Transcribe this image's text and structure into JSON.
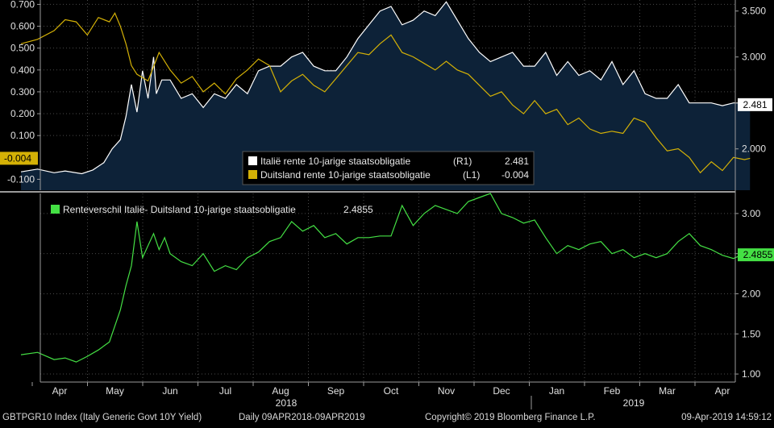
{
  "footer": {
    "security": "GBTPGR10 Index (Italy Generic Govt 10Y Yield)",
    "range": "Daily 09APR2018-09APR2019",
    "copyright": "Copyright© 2019 Bloomberg Finance L.P.",
    "timestamp": "09-Apr-2019 14:59:12"
  },
  "colors": {
    "italy": "#ffffff",
    "italy_fill": "#0d2238",
    "germany": "#d4b106",
    "spread": "#44e044",
    "grid": "#4a4a4a",
    "divider": "#9a9a9a"
  },
  "chart_data": [
    {
      "type": "line",
      "panel": "top",
      "legend": [
        {
          "name": "Italië rente 10-jarige staatsobligatie",
          "axis": "(R1)",
          "value": "2.481",
          "color": "#ffffff"
        },
        {
          "name": "Duitsland rente 10-jarige staatsobligatie",
          "axis": "(L1)",
          "value": "-0.004",
          "color": "#d4b106"
        }
      ],
      "y_left": {
        "ticks": [
          "0.700",
          "0.600",
          "0.500",
          "0.400",
          "0.300",
          "0.200",
          "0.100",
          "-0.100"
        ],
        "values": [
          0.7,
          0.6,
          0.5,
          0.4,
          0.3,
          0.2,
          0.1,
          -0.1
        ],
        "ylim": [
          -0.15,
          0.72
        ],
        "last_label": "-0.004"
      },
      "y_right": {
        "ticks": [
          "3.500",
          "3.000",
          "2.500",
          "2.000"
        ],
        "values": [
          3.5,
          3.0,
          2.5,
          2.0
        ],
        "ylim": [
          1.55,
          3.62
        ],
        "last_label": "2.481"
      },
      "x_months": [
        4,
        5,
        6,
        7,
        8,
        9,
        10,
        11,
        12,
        13,
        14,
        15,
        16
      ],
      "series": [
        {
          "name": "Italië rente 10-jarige staatsobligatie",
          "axis": "right",
          "area": true,
          "x": [
            3.3,
            3.6,
            3.9,
            4.1,
            4.4,
            4.6,
            4.8,
            4.95,
            5.1,
            5.2,
            5.3,
            5.4,
            5.5,
            5.6,
            5.7,
            5.75,
            5.85,
            6.0,
            6.2,
            6.4,
            6.6,
            6.8,
            7.0,
            7.2,
            7.4,
            7.6,
            7.8,
            8.0,
            8.2,
            8.4,
            8.6,
            8.8,
            9.0,
            9.2,
            9.4,
            9.6,
            9.8,
            10.0,
            10.2,
            10.4,
            10.6,
            10.8,
            11.0,
            11.2,
            11.4,
            11.6,
            11.8,
            12.0,
            12.2,
            12.4,
            12.6,
            12.8,
            13.0,
            13.2,
            13.4,
            13.6,
            13.8,
            14.0,
            14.2,
            14.4,
            14.6,
            14.8,
            15.0,
            15.2,
            15.4,
            15.6,
            15.8,
            16.0,
            16.2,
            16.4,
            16.5
          ],
          "y": [
            1.75,
            1.78,
            1.74,
            1.76,
            1.73,
            1.77,
            1.85,
            2.0,
            2.1,
            2.35,
            2.7,
            2.4,
            2.85,
            2.55,
            3.0,
            2.6,
            2.75,
            2.75,
            2.55,
            2.6,
            2.45,
            2.6,
            2.55,
            2.7,
            2.6,
            2.85,
            2.9,
            2.9,
            3.0,
            3.05,
            2.9,
            2.85,
            2.85,
            3.0,
            3.2,
            3.35,
            3.5,
            3.55,
            3.35,
            3.4,
            3.5,
            3.45,
            3.6,
            3.4,
            3.2,
            3.05,
            2.95,
            3.0,
            3.05,
            2.9,
            2.9,
            3.05,
            2.8,
            2.95,
            2.8,
            2.85,
            2.75,
            2.95,
            2.7,
            2.85,
            2.6,
            2.55,
            2.55,
            2.7,
            2.5,
            2.5,
            2.5,
            2.47,
            2.5,
            2.5,
            2.481
          ]
        },
        {
          "name": "Duitsland rente 10-jarige staatsobligatie",
          "axis": "left",
          "x": [
            3.3,
            3.6,
            3.9,
            4.1,
            4.3,
            4.5,
            4.7,
            4.9,
            5.0,
            5.1,
            5.2,
            5.3,
            5.4,
            5.6,
            5.8,
            6.0,
            6.2,
            6.4,
            6.6,
            6.8,
            7.0,
            7.2,
            7.4,
            7.6,
            7.8,
            8.0,
            8.2,
            8.4,
            8.6,
            8.8,
            9.0,
            9.2,
            9.4,
            9.6,
            9.8,
            10.0,
            10.2,
            10.4,
            10.6,
            10.8,
            11.0,
            11.2,
            11.4,
            11.6,
            11.8,
            12.0,
            12.2,
            12.4,
            12.6,
            12.8,
            13.0,
            13.2,
            13.4,
            13.6,
            13.8,
            14.0,
            14.2,
            14.4,
            14.6,
            14.8,
            15.0,
            15.2,
            15.4,
            15.6,
            15.8,
            16.0,
            16.2,
            16.4,
            16.5
          ],
          "y": [
            0.52,
            0.54,
            0.58,
            0.63,
            0.62,
            0.56,
            0.64,
            0.62,
            0.66,
            0.6,
            0.52,
            0.42,
            0.38,
            0.35,
            0.48,
            0.4,
            0.34,
            0.37,
            0.3,
            0.34,
            0.29,
            0.36,
            0.4,
            0.45,
            0.42,
            0.3,
            0.35,
            0.38,
            0.33,
            0.3,
            0.36,
            0.42,
            0.48,
            0.47,
            0.52,
            0.56,
            0.48,
            0.46,
            0.43,
            0.4,
            0.44,
            0.4,
            0.38,
            0.33,
            0.28,
            0.3,
            0.24,
            0.2,
            0.26,
            0.2,
            0.22,
            0.15,
            0.18,
            0.13,
            0.11,
            0.12,
            0.11,
            0.18,
            0.16,
            0.09,
            0.03,
            0.04,
            0.0,
            -0.07,
            -0.02,
            -0.06,
            0.0,
            -0.01,
            -0.004
          ]
        }
      ]
    },
    {
      "type": "line",
      "panel": "bottom",
      "legend": [
        {
          "name": "Renteverschil Italië- Duitsland 10-jarige staatsobligatie",
          "value": "2.4855",
          "color": "#44e044"
        }
      ],
      "y_right": {
        "ticks": [
          "3.00",
          "2.50",
          "2.00",
          "1.50",
          "1.00"
        ],
        "values": [
          3.0,
          2.5,
          2.0,
          1.5,
          1.0
        ],
        "ylim": [
          0.9,
          3.25
        ],
        "last_label": "2.4855"
      },
      "series": [
        {
          "name": "Renteverschil Italië- Duitsland 10-jarige staatsobligatie",
          "axis": "right",
          "x": [
            3.3,
            3.6,
            3.9,
            4.1,
            4.3,
            4.5,
            4.7,
            4.9,
            5.0,
            5.1,
            5.2,
            5.3,
            5.4,
            5.5,
            5.6,
            5.7,
            5.8,
            5.9,
            6.0,
            6.2,
            6.4,
            6.6,
            6.8,
            7.0,
            7.2,
            7.4,
            7.6,
            7.8,
            8.0,
            8.2,
            8.4,
            8.6,
            8.8,
            9.0,
            9.2,
            9.4,
            9.6,
            9.8,
            10.0,
            10.2,
            10.4,
            10.6,
            10.8,
            11.0,
            11.2,
            11.4,
            11.6,
            11.8,
            12.0,
            12.2,
            12.4,
            12.6,
            12.8,
            13.0,
            13.2,
            13.4,
            13.6,
            13.8,
            14.0,
            14.2,
            14.4,
            14.6,
            14.8,
            15.0,
            15.2,
            15.4,
            15.6,
            15.8,
            16.0,
            16.2,
            16.4,
            16.5
          ],
          "y": [
            1.24,
            1.27,
            1.18,
            1.2,
            1.15,
            1.22,
            1.3,
            1.4,
            1.6,
            1.8,
            2.1,
            2.35,
            2.9,
            2.45,
            2.6,
            2.75,
            2.55,
            2.7,
            2.5,
            2.4,
            2.35,
            2.5,
            2.28,
            2.35,
            2.3,
            2.45,
            2.52,
            2.65,
            2.7,
            2.9,
            2.78,
            2.85,
            2.7,
            2.75,
            2.62,
            2.7,
            2.7,
            2.72,
            2.72,
            3.1,
            2.85,
            3.0,
            3.1,
            3.05,
            3.0,
            3.15,
            3.2,
            3.25,
            3.0,
            2.95,
            2.88,
            2.92,
            2.7,
            2.5,
            2.6,
            2.55,
            2.62,
            2.65,
            2.5,
            2.55,
            2.45,
            2.5,
            2.45,
            2.5,
            2.65,
            2.75,
            2.6,
            2.55,
            2.48,
            2.44,
            2.5,
            2.4855
          ]
        }
      ]
    }
  ],
  "x_axis": {
    "months": [
      "Apr",
      "May",
      "Jun",
      "Jul",
      "Aug",
      "Sep",
      "Oct",
      "Nov",
      "Dec",
      "Jan",
      "Feb",
      "Mar",
      "Apr"
    ],
    "years": [
      "2018",
      "2019"
    ]
  }
}
